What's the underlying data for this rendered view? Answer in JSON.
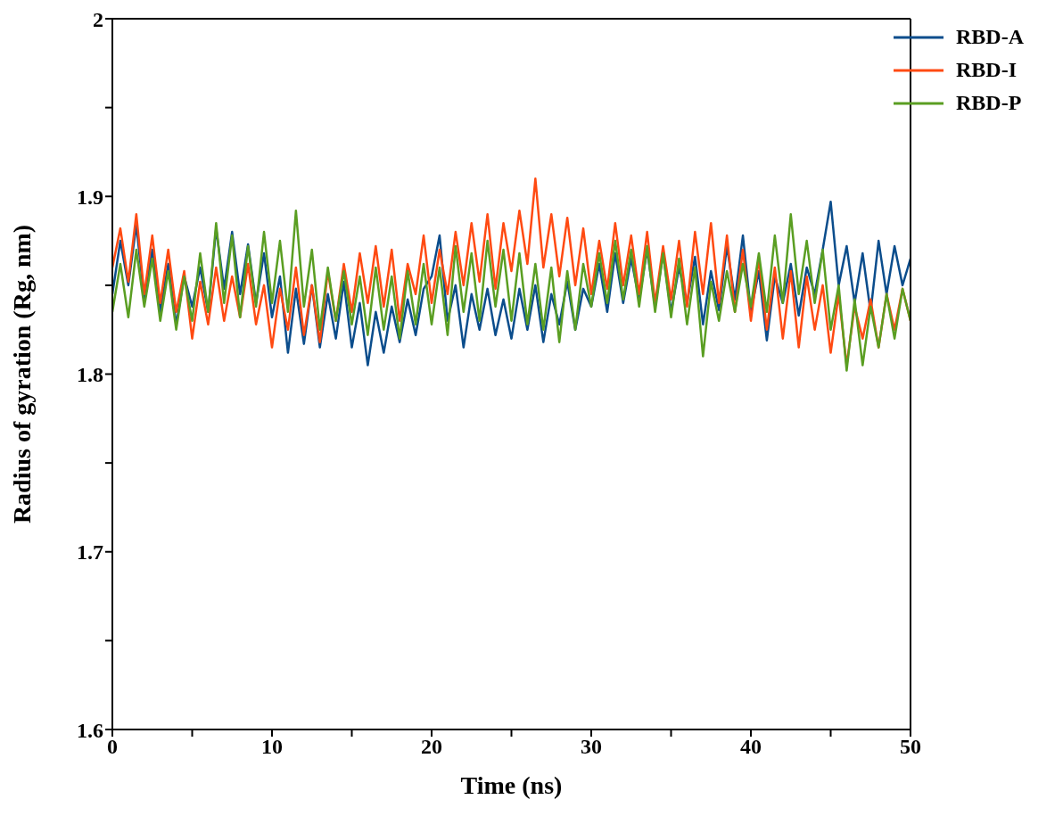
{
  "chart_data": {
    "type": "line",
    "xlabel": "Time (ns)",
    "ylabel": "Radius of gyration (Rg, nm)",
    "x": [
      0,
      0.5,
      1,
      1.5,
      2,
      2.5,
      3,
      3.5,
      4,
      4.5,
      5,
      5.5,
      6,
      6.5,
      7,
      7.5,
      8,
      8.5,
      9,
      9.5,
      10,
      10.5,
      11,
      11.5,
      12,
      12.5,
      13,
      13.5,
      14,
      14.5,
      15,
      15.5,
      16,
      16.5,
      17,
      17.5,
      18,
      18.5,
      19,
      19.5,
      20,
      20.5,
      21,
      21.5,
      22,
      22.5,
      23,
      23.5,
      24,
      24.5,
      25,
      25.5,
      26,
      26.5,
      27,
      27.5,
      28,
      28.5,
      29,
      29.5,
      30,
      30.5,
      31,
      31.5,
      32,
      32.5,
      33,
      33.5,
      34,
      34.5,
      35,
      35.5,
      36,
      36.5,
      37,
      37.5,
      38,
      38.5,
      39,
      39.5,
      40,
      40.5,
      41,
      41.5,
      42,
      42.5,
      43,
      43.5,
      44,
      44.5,
      45,
      45.5,
      46,
      46.5,
      47,
      47.5,
      48,
      48.5,
      49,
      49.5,
      50
    ],
    "series": [
      {
        "name": "RBD-A",
        "color": "#0b4d8c",
        "values": [
          1.845,
          1.875,
          1.85,
          1.884,
          1.842,
          1.87,
          1.835,
          1.862,
          1.828,
          1.855,
          1.838,
          1.86,
          1.835,
          1.882,
          1.848,
          1.88,
          1.845,
          1.873,
          1.84,
          1.868,
          1.832,
          1.855,
          1.812,
          1.848,
          1.817,
          1.85,
          1.815,
          1.845,
          1.82,
          1.852,
          1.815,
          1.84,
          1.805,
          1.835,
          1.812,
          1.838,
          1.818,
          1.842,
          1.822,
          1.848,
          1.855,
          1.878,
          1.83,
          1.85,
          1.815,
          1.845,
          1.825,
          1.848,
          1.822,
          1.842,
          1.82,
          1.848,
          1.825,
          1.85,
          1.818,
          1.845,
          1.828,
          1.852,
          1.825,
          1.848,
          1.838,
          1.862,
          1.835,
          1.868,
          1.84,
          1.865,
          1.842,
          1.87,
          1.838,
          1.868,
          1.835,
          1.86,
          1.84,
          1.866,
          1.828,
          1.858,
          1.836,
          1.872,
          1.842,
          1.878,
          1.835,
          1.858,
          1.819,
          1.855,
          1.84,
          1.862,
          1.833,
          1.86,
          1.845,
          1.87,
          1.897,
          1.85,
          1.872,
          1.84,
          1.868,
          1.835,
          1.875,
          1.845,
          1.872,
          1.85,
          1.865
        ]
      },
      {
        "name": "RBD-I",
        "color": "#ff4a12",
        "values": [
          1.86,
          1.882,
          1.852,
          1.89,
          1.845,
          1.878,
          1.84,
          1.87,
          1.835,
          1.858,
          1.82,
          1.852,
          1.828,
          1.86,
          1.83,
          1.855,
          1.832,
          1.862,
          1.828,
          1.85,
          1.815,
          1.848,
          1.825,
          1.86,
          1.822,
          1.85,
          1.818,
          1.858,
          1.83,
          1.862,
          1.835,
          1.868,
          1.84,
          1.872,
          1.838,
          1.87,
          1.83,
          1.862,
          1.845,
          1.878,
          1.84,
          1.87,
          1.845,
          1.88,
          1.85,
          1.885,
          1.852,
          1.89,
          1.848,
          1.885,
          1.858,
          1.892,
          1.862,
          1.91,
          1.86,
          1.89,
          1.855,
          1.888,
          1.85,
          1.882,
          1.845,
          1.875,
          1.848,
          1.885,
          1.85,
          1.878,
          1.845,
          1.88,
          1.84,
          1.872,
          1.842,
          1.875,
          1.838,
          1.88,
          1.845,
          1.885,
          1.84,
          1.878,
          1.835,
          1.87,
          1.83,
          1.865,
          1.825,
          1.86,
          1.82,
          1.858,
          1.815,
          1.855,
          1.825,
          1.85,
          1.812,
          1.845,
          1.805,
          1.838,
          1.82,
          1.842,
          1.815,
          1.845,
          1.825,
          1.848,
          1.83
        ]
      },
      {
        "name": "RBD-P",
        "color": "#5a9e22",
        "values": [
          1.835,
          1.862,
          1.832,
          1.87,
          1.838,
          1.865,
          1.83,
          1.858,
          1.825,
          1.855,
          1.83,
          1.868,
          1.835,
          1.885,
          1.84,
          1.878,
          1.832,
          1.872,
          1.838,
          1.88,
          1.84,
          1.875,
          1.835,
          1.892,
          1.838,
          1.87,
          1.825,
          1.86,
          1.83,
          1.858,
          1.828,
          1.855,
          1.822,
          1.86,
          1.825,
          1.855,
          1.82,
          1.858,
          1.828,
          1.862,
          1.828,
          1.86,
          1.822,
          1.872,
          1.835,
          1.868,
          1.83,
          1.875,
          1.838,
          1.87,
          1.83,
          1.868,
          1.828,
          1.862,
          1.825,
          1.86,
          1.818,
          1.858,
          1.825,
          1.862,
          1.838,
          1.868,
          1.84,
          1.875,
          1.842,
          1.87,
          1.838,
          1.872,
          1.835,
          1.868,
          1.832,
          1.865,
          1.828,
          1.86,
          1.81,
          1.852,
          1.83,
          1.858,
          1.835,
          1.862,
          1.838,
          1.868,
          1.835,
          1.878,
          1.84,
          1.89,
          1.845,
          1.875,
          1.84,
          1.87,
          1.825,
          1.85,
          1.802,
          1.842,
          1.805,
          1.838,
          1.815,
          1.845,
          1.82,
          1.848,
          1.83
        ]
      }
    ],
    "xlim": [
      0,
      50
    ],
    "xticks": [
      0,
      {
        "value": 5,
        "label": null
      },
      10,
      {
        "value": 15,
        "label": null
      },
      20,
      {
        "value": 25,
        "label": null
      },
      30,
      {
        "value": 35,
        "label": null
      },
      40,
      {
        "value": 45,
        "label": null
      },
      50
    ],
    "ylim": [
      1.6,
      2
    ],
    "yticks": [
      1.6,
      {
        "value": 1.65,
        "label": null
      },
      1.7,
      {
        "value": 1.75,
        "label": null
      },
      1.8,
      {
        "value": 1.85,
        "label": null
      },
      1.9,
      {
        "value": 1.95,
        "label": null
      },
      2
    ],
    "grid": false,
    "legend": "top right",
    "marker": "none",
    "line_style": "solid"
  }
}
